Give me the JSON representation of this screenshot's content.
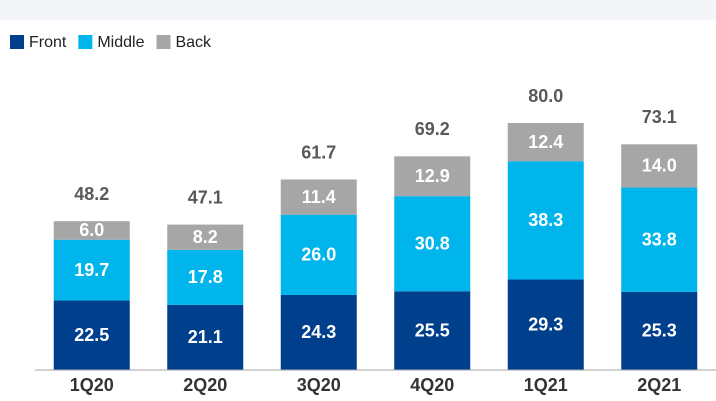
{
  "chart_data": {
    "type": "stacked-bar",
    "categories": [
      "1Q20",
      "2Q20",
      "3Q20",
      "4Q20",
      "1Q21",
      "2Q21"
    ],
    "series": [
      {
        "name": "Front",
        "color": "#003f8c",
        "values": [
          22.5,
          21.1,
          24.3,
          25.5,
          29.3,
          25.3
        ]
      },
      {
        "name": "Middle",
        "color": "#00b4ec",
        "values": [
          19.7,
          17.8,
          26,
          30.8,
          38.3,
          33.8
        ],
        "value_labels": [
          "19.7",
          "17.8",
          "26.0",
          "30.8",
          "38.3",
          "33.8"
        ]
      },
      {
        "name": "Back",
        "color": "#a6a6a6",
        "values": [
          6,
          8.2,
          11.4,
          12.9,
          12.4,
          14
        ],
        "value_labels": [
          "6.0",
          "8.2",
          "11.4",
          "12.9",
          "12.4",
          "14.0"
        ]
      }
    ],
    "totals": {
      "values": [
        48.2,
        47.1,
        61.7,
        69.2,
        80,
        73.1
      ],
      "value_labels": [
        "48.2",
        "47.1",
        "61.7",
        "69.2",
        "80.0",
        "73.1"
      ]
    },
    "legend": "top-left"
  }
}
